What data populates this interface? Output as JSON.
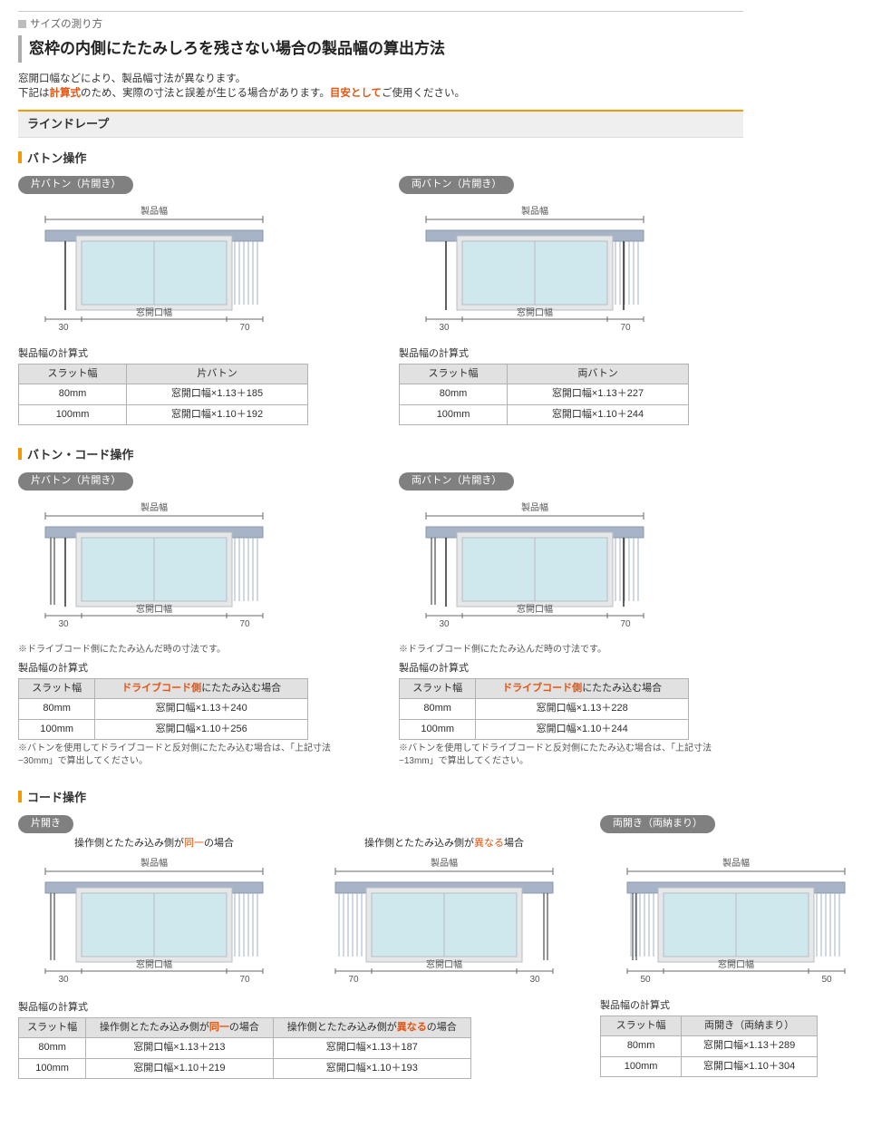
{
  "top": {
    "kicker": "サイズの測り方",
    "title": "窓枠の内側にたたみしろを残さない場合の製品幅の算出方法",
    "intro1": "窓開口幅などにより、製品幅寸法が異なります。",
    "intro2a": "下記は",
    "keisan": "計算式",
    "intro2b": "のため、実際の寸法と誤差が生じる場合があります。",
    "meyasu": "目安として",
    "intro2c": "ご使用ください。"
  },
  "sectionTitle": "ラインドレープ",
  "s1": {
    "title": "バトン操作",
    "left": {
      "chip": "片バトン（片開き）",
      "tableTitle": "製品幅の計算式",
      "thSlat": "スラット幅",
      "thOp": "片バトン",
      "r1a": "80mm",
      "r1b": "窓開口幅×1.13＋185",
      "r2a": "100mm",
      "r2b": "窓開口幅×1.10＋192"
    },
    "right": {
      "chip": "両バトン（片開き）",
      "tableTitle": "製品幅の計算式",
      "thSlat": "スラット幅",
      "thOp": "両バトン",
      "r1a": "80mm",
      "r1b": "窓開口幅×1.13＋227",
      "r2a": "100mm",
      "r2b": "窓開口幅×1.10＋244"
    }
  },
  "s2": {
    "title": "バトン・コード操作",
    "note": "※ドライブコード側にたたみ込んだ時の寸法です。",
    "left": {
      "chip": "片バトン（片開き）",
      "tableTitle": "製品幅の計算式",
      "thSlat": "スラット幅",
      "thOpA": "ドライブコード側",
      "thOpB": "にたたみ込む場合",
      "r1a": "80mm",
      "r1b": "窓開口幅×1.13＋240",
      "r2a": "100mm",
      "r2b": "窓開口幅×1.10＋256",
      "foot": "※バトンを使用してドライブコードと反対側にたたみ込む場合は、「上記寸法−30mm」で算出してください。"
    },
    "right": {
      "chip": "両バトン（片開き）",
      "tableTitle": "製品幅の計算式",
      "thSlat": "スラット幅",
      "thOpA": "ドライブコード側",
      "thOpB": "にたたみ込む場合",
      "r1a": "80mm",
      "r1b": "窓開口幅×1.13＋228",
      "r2a": "100mm",
      "r2b": "窓開口幅×1.10＋244",
      "foot": "※バトンを使用してドライブコードと反対側にたたみ込む場合は、「上記寸法−13mm」で算出してください。"
    }
  },
  "s3": {
    "title": "コード操作",
    "kata": {
      "chip": "片開き",
      "cap1a": "操作側とたたみ込み側が",
      "cap1e": "同一",
      "cap1b": "の場合",
      "cap2a": "操作側とたたみ込み側が",
      "cap2e": "異なる",
      "cap2b": "場合",
      "tableTitle": "製品幅の計算式",
      "thSlat": "スラット幅",
      "th1a": "操作側とたたみ込み側が",
      "th1e": "同一",
      "th1b": "の場合",
      "th2a": "操作側とたたみ込み側が",
      "th2e": "異なる",
      "th2b": "の場合",
      "r1a": "80mm",
      "r1b": "窓開口幅×1.13＋213",
      "r1c": "窓開口幅×1.13＋187",
      "r2a": "100mm",
      "r2b": "窓開口幅×1.10＋219",
      "r2c": "窓開口幅×1.10＋193"
    },
    "ryo": {
      "chip": "両開き（両納まり）",
      "tableTitle": "製品幅の計算式",
      "thSlat": "スラット幅",
      "thOp": "両開き（両納まり）",
      "r1a": "80mm",
      "r1b": "窓開口幅×1.13＋289",
      "r2a": "100mm",
      "r2b": "窓開口幅×1.10＋304"
    }
  },
  "diagram": {
    "productW": "製品幅",
    "windowW": "窓開口幅",
    "d30": "30",
    "d70": "70",
    "d50": "50",
    "colors": {
      "headbox": "#a7b4c7",
      "window": "#cfe8ee",
      "frame": "#b8bcc1",
      "slat": "#9fb2c7",
      "line": "#6a6a6a",
      "txt": "#555555"
    }
  }
}
